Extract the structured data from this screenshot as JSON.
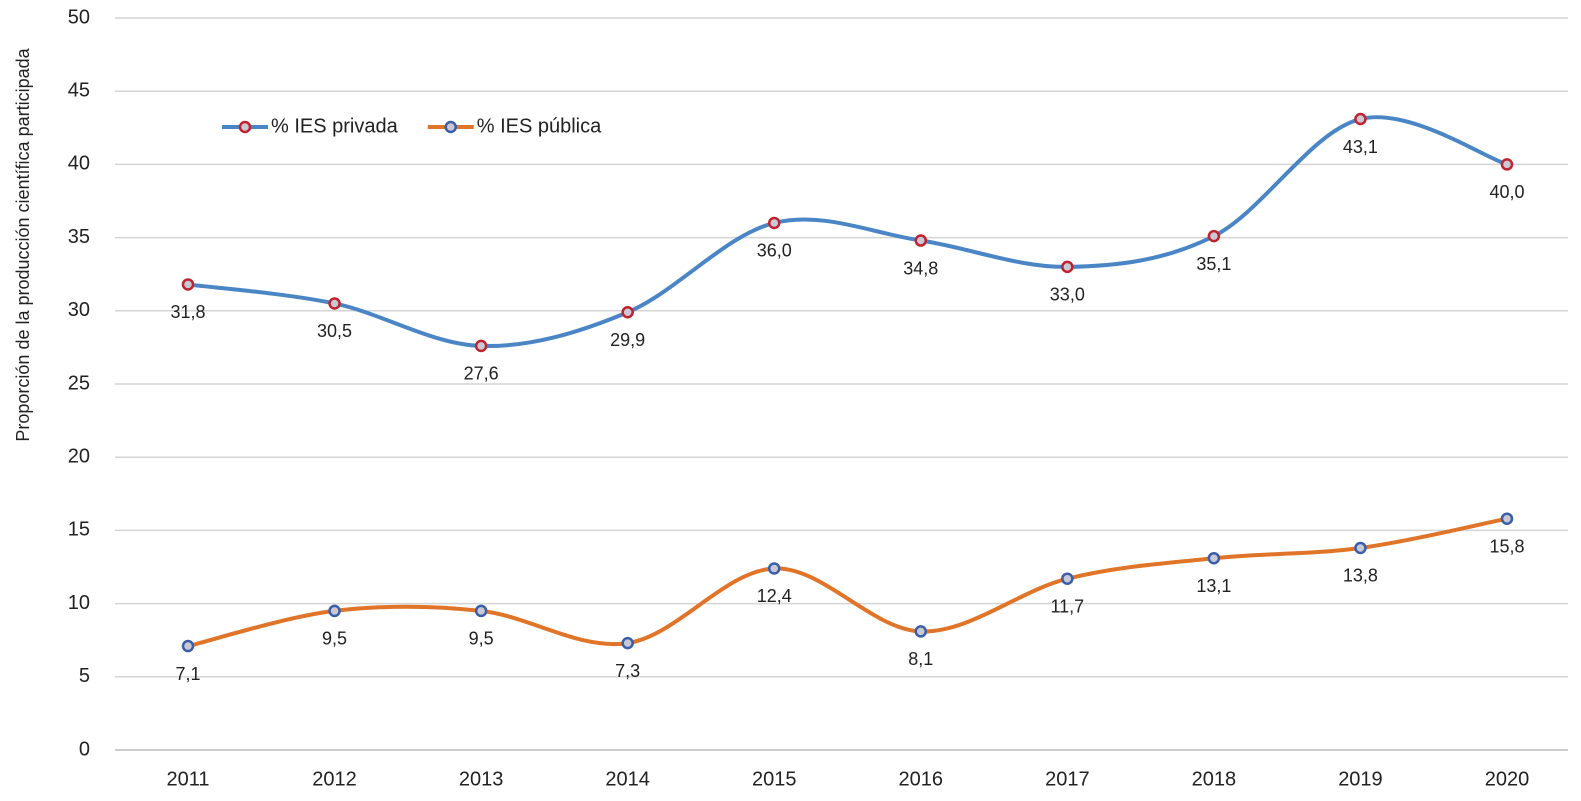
{
  "chart_data": {
    "type": "line",
    "y_label": "Proporción de la producción científica participada",
    "categories": [
      "2011",
      "2012",
      "2013",
      "2014",
      "2015",
      "2016",
      "2017",
      "2018",
      "2019",
      "2020"
    ],
    "series": [
      {
        "name": "% IES privada",
        "color": "#4a86c5",
        "marker_color": "#c0222e",
        "values": [
          31.8,
          30.5,
          27.6,
          29.9,
          36.0,
          34.8,
          33.0,
          35.1,
          43.1,
          40.0
        ],
        "value_labels": [
          "31,8",
          "30,5",
          "27,6",
          "29,9",
          "36,0",
          "34,8",
          "33,0",
          "35,1",
          "43,1",
          "40,0"
        ]
      },
      {
        "name": "% IES pública",
        "color": "#e07428",
        "marker_color": "#3a5fa8",
        "values": [
          7.1,
          9.5,
          9.5,
          7.3,
          12.4,
          8.1,
          11.7,
          13.1,
          13.8,
          15.8
        ],
        "value_labels": [
          "7,1",
          "9,5",
          "9,5",
          "7,3",
          "12,4",
          "8,1",
          "11,7",
          "13,1",
          "13,8",
          "15,8"
        ]
      }
    ],
    "ylim": [
      0,
      50
    ],
    "yticks": [
      0,
      5,
      10,
      15,
      20,
      25,
      30,
      35,
      40,
      45,
      50
    ],
    "grid": true,
    "smooth": true,
    "legend": "upper left"
  }
}
